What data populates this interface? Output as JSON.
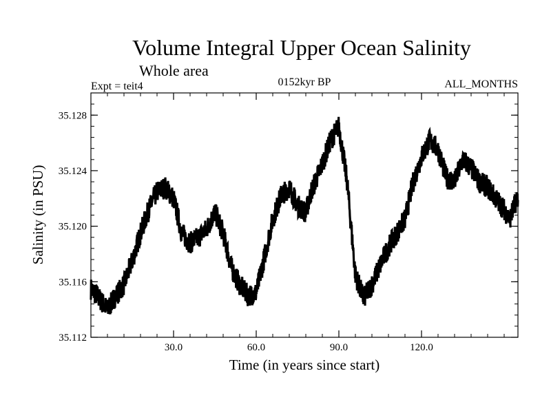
{
  "chart_data": {
    "type": "line",
    "title": "Volume Integral Upper Ocean Salinity",
    "subtitle": "Whole area",
    "experiment": "Expt = teit4",
    "period": "0152kyr BP",
    "months": "ALL_MONTHS",
    "xlabel": "Time (in years since start)",
    "ylabel": "Salinity (in PSU)",
    "xlim": [
      0,
      155
    ],
    "ylim": [
      35.112,
      35.1296
    ],
    "x_ticks": [
      30,
      60,
      90,
      120
    ],
    "x_tick_labels": [
      "30.0",
      "60.0",
      "90.0",
      "120.0"
    ],
    "y_ticks": [
      35.112,
      35.116,
      35.12,
      35.124,
      35.128
    ],
    "y_tick_labels": [
      "35.112",
      "35.116",
      "35.120",
      "35.124",
      "35.128"
    ],
    "grid": false,
    "series": [
      {
        "name": "Salinity",
        "color": "#000000",
        "x": [
          0,
          3,
          6,
          9,
          12,
          15,
          18,
          21,
          24,
          27,
          30,
          33,
          36,
          39,
          42,
          45,
          48,
          51,
          54,
          57,
          60,
          63,
          66,
          69,
          72,
          75,
          78,
          80,
          82,
          84,
          87,
          90,
          93,
          96,
          99,
          102,
          105,
          108,
          111,
          114,
          117,
          120,
          123,
          126,
          129,
          132,
          135,
          138,
          141,
          144,
          147,
          150,
          152,
          155
        ],
        "y": [
          35.1155,
          35.1148,
          35.114,
          35.115,
          35.1158,
          35.1175,
          35.1195,
          35.1212,
          35.1225,
          35.1228,
          35.122,
          35.1195,
          35.1188,
          35.1192,
          35.1198,
          35.121,
          35.1195,
          35.117,
          35.1158,
          35.115,
          35.1152,
          35.1178,
          35.1205,
          35.1222,
          35.1228,
          35.1215,
          35.121,
          35.1225,
          35.1235,
          35.1245,
          35.1262,
          35.1272,
          35.1232,
          35.1165,
          35.1148,
          35.1158,
          35.1172,
          35.1185,
          35.1195,
          35.1205,
          35.1232,
          35.125,
          35.1262,
          35.1255,
          35.1235,
          35.1232,
          35.1248,
          35.1242,
          35.1232,
          35.1228,
          35.122,
          35.1212,
          35.1205,
          35.1222
        ]
      }
    ]
  }
}
